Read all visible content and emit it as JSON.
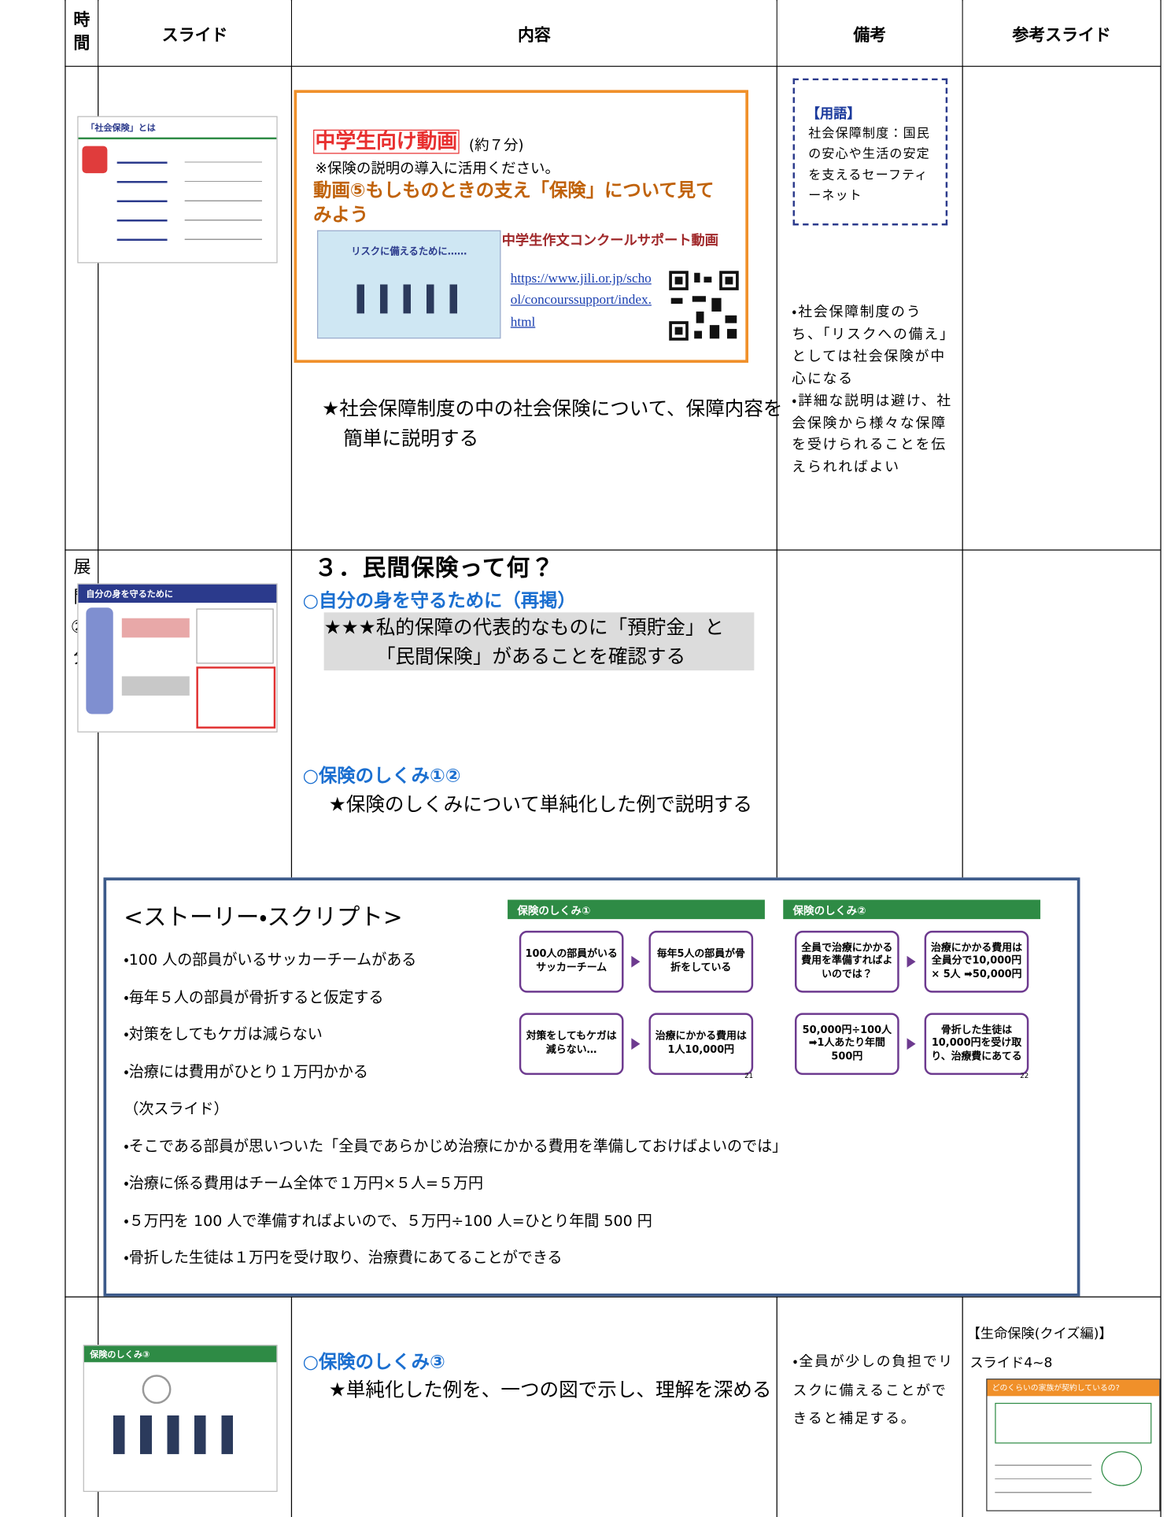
{
  "header": {
    "cells": [
      "時間",
      "スライド",
      "内容",
      "備考",
      "参考スライド"
    ]
  },
  "rows": [
    {
      "slide_title": "「社会保険」とは",
      "video": {
        "label": "中学生向け動画",
        "duration": "(約７分)",
        "note": "※保険の説明の導入に活用ください。",
        "name": "動画⑤もしものときの支え「保険」について見てみよう",
        "thumb_title": "リスクに備えるために……",
        "contest": "中学生作文コンクールサポート動画",
        "url": "https://www.jili.or.jp/school/concourssupport/index.html"
      },
      "content": "★社会保障制度の中の社会保険について、保障内容を簡単に説明する",
      "term_heading": "【用語】",
      "term": "社会保障制度：国民の安心や生活の安定を支えるセーフティーネット",
      "remarks": [
        "・社会保障制度のうち、「リスクへの備え」としては社会保険が中心になる",
        "・詳細な説明は避け、社会保険から様々な保障を受けられることを伝えられればよい"
      ]
    },
    {
      "time": "展開②20分",
      "slide_title": "自分の身を守るために",
      "heading": "３．民間保険って何？",
      "sub1": "○自分の身を守るために（再掲）",
      "text1": "★★★私的保障の代表的なものに「預貯金」と「民間保険」があることを確認する",
      "sub2": "○保険のしくみ①②",
      "text2": "★保険のしくみについて単純化した例で説明する"
    },
    {
      "slide_title": "保険のしくみ③",
      "sub": "○保険のしくみ③",
      "text": "★単純化した例を、一つの図で示し、理解を深める",
      "remarks": "・全員が少しの負担でリスクに備えることができると補足する。",
      "ref_title": "【生命保険(クイズ編)】",
      "ref_slides": "スライド4~8",
      "ref_thumb_title": "どのくらいの家族が契約しているの?"
    }
  ],
  "story": {
    "title": "<ストーリー・スクリプト>",
    "lines_a": [
      "・100 人の部員がいるサッカーチームがある",
      "・毎年５人の部員が骨折すると仮定する",
      "・対策をしてもケガは減らない",
      "・治療には費用がひとり１万円かかる"
    ],
    "next": "（次スライド）",
    "lines_b": [
      "・そこである部員が思いついた「全員であらかじめ治療にかかる費用を準備しておけばよいのでは」",
      "・治療に係る費用はチーム全体で１万円×５人=５万円",
      "・５万円を 100 人で準備すればよいので、５万円÷100 人=ひとり年間 500 円",
      "・骨折した生徒は１万円を受け取り、治療費にあてることができる"
    ],
    "slides": [
      {
        "title": "保険のしくみ①",
        "boxes": [
          "100人の部員がいるサッカーチーム",
          "毎年5人の部員が骨折をしている",
          "対策をしてもケガは減らない…",
          "治療にかかる費用は1人10,000円"
        ],
        "page": "21"
      },
      {
        "title": "保険のしくみ②",
        "boxes": [
          "全員で治療にかかる費用を準備すればよいのでは？",
          "治療にかかる費用は全員分で10,000円 × 5人 ➡50,000円",
          "50,000円÷100人 ➡1人あたり年間500円",
          "骨折した生徒は10,000円を受け取り、治療費にあてる"
        ],
        "page": "22"
      }
    ]
  }
}
